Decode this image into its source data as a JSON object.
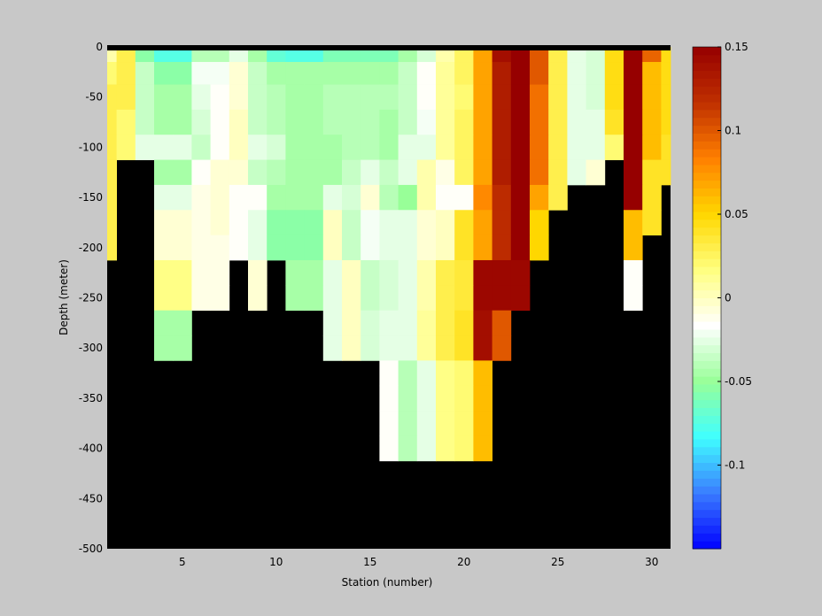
{
  "figure": {
    "background": "#c8c8c8",
    "mask_color": "#000000"
  },
  "chart_data": {
    "type": "heatmap",
    "title": "",
    "xlabel": "Station (number)",
    "ylabel": "Depth (meter)",
    "xlim": [
      1,
      31
    ],
    "ylim": [
      -500,
      0
    ],
    "x_ticks": [
      5,
      10,
      15,
      20,
      25,
      30
    ],
    "y_ticks": [
      0,
      -50,
      -100,
      -150,
      -200,
      -250,
      -300,
      -350,
      -400,
      -450,
      -500
    ],
    "depth_levels": [
      -5,
      -25,
      -50,
      -75,
      -100,
      -125,
      -150,
      -175,
      -200,
      -225,
      -250,
      -275,
      -300,
      -325,
      -350,
      -375,
      -400
    ],
    "stations": [
      1,
      2,
      3,
      4,
      5,
      6,
      7,
      8,
      9,
      10,
      11,
      12,
      13,
      14,
      15,
      16,
      17,
      18,
      19,
      20,
      21,
      22,
      23,
      24,
      25,
      26,
      27,
      28,
      29,
      30,
      31
    ],
    "values": [
      [
        0.005,
        0.03,
        -0.055,
        -0.075,
        -0.075,
        -0.04,
        -0.04,
        -0.025,
        -0.045,
        -0.07,
        -0.075,
        -0.075,
        -0.06,
        -0.06,
        -0.06,
        -0.06,
        -0.045,
        -0.03,
        0.005,
        0.025,
        0.07,
        0.14,
        0.15,
        0.1,
        0.03,
        -0.025,
        -0.03,
        0.045,
        0.15,
        0.095,
        0.045
      ],
      [
        0.02,
        0.03,
        -0.035,
        -0.055,
        -0.055,
        -0.02,
        -0.02,
        -0.005,
        -0.035,
        -0.045,
        -0.045,
        -0.045,
        -0.045,
        -0.045,
        -0.045,
        -0.045,
        -0.035,
        -0.015,
        0.01,
        0.025,
        0.07,
        0.13,
        0.15,
        0.1,
        0.03,
        -0.025,
        -0.03,
        0.045,
        0.15,
        0.06,
        0.045
      ],
      [
        0.03,
        0.03,
        -0.035,
        -0.045,
        -0.045,
        -0.025,
        -0.015,
        -0.005,
        -0.035,
        -0.04,
        -0.045,
        -0.045,
        -0.04,
        -0.04,
        -0.04,
        -0.04,
        -0.035,
        -0.015,
        0.01,
        0.02,
        0.07,
        0.13,
        0.15,
        0.09,
        0.03,
        -0.025,
        -0.03,
        0.045,
        0.15,
        0.06,
        0.045
      ],
      [
        0.03,
        0.02,
        -0.035,
        -0.045,
        -0.045,
        -0.03,
        -0.015,
        0.0,
        -0.035,
        -0.04,
        -0.045,
        -0.045,
        -0.04,
        -0.04,
        -0.04,
        -0.045,
        -0.035,
        -0.02,
        0.01,
        0.025,
        0.07,
        0.13,
        0.15,
        0.09,
        0.03,
        -0.025,
        -0.025,
        0.04,
        0.15,
        0.06,
        0.045
      ],
      [
        0.03,
        0.02,
        -0.025,
        -0.025,
        -0.025,
        -0.035,
        -0.015,
        0.0,
        -0.025,
        -0.03,
        -0.045,
        -0.045,
        -0.045,
        -0.04,
        -0.04,
        -0.045,
        -0.025,
        -0.025,
        0.01,
        0.025,
        0.07,
        0.13,
        0.15,
        0.09,
        0.03,
        -0.025,
        -0.025,
        0.02,
        0.15,
        0.06,
        0.04
      ],
      [
        0.03,
        null,
        null,
        -0.045,
        -0.045,
        -0.015,
        -0.005,
        -0.005,
        -0.035,
        -0.04,
        -0.045,
        -0.045,
        -0.045,
        -0.035,
        -0.025,
        -0.035,
        -0.025,
        0.005,
        -0.01,
        0.025,
        0.07,
        0.13,
        0.15,
        0.09,
        0.03,
        -0.025,
        -0.005,
        null,
        0.15,
        0.04,
        0.04
      ],
      [
        0.03,
        null,
        null,
        -0.025,
        -0.025,
        -0.01,
        -0.005,
        -0.015,
        -0.015,
        -0.045,
        -0.045,
        -0.045,
        -0.025,
        -0.03,
        -0.005,
        -0.04,
        -0.05,
        0.005,
        -0.015,
        -0.015,
        0.08,
        0.12,
        0.15,
        0.07,
        0.03,
        null,
        null,
        null,
        0.15,
        0.04,
        null
      ],
      [
        0.03,
        null,
        null,
        -0.005,
        -0.005,
        -0.01,
        -0.005,
        -0.015,
        -0.025,
        -0.055,
        -0.055,
        -0.055,
        0.0,
        -0.035,
        -0.02,
        -0.025,
        -0.025,
        -0.005,
        0.0,
        0.04,
        0.07,
        0.12,
        0.15,
        0.05,
        null,
        null,
        null,
        null,
        0.06,
        0.04,
        null
      ],
      [
        0.03,
        null,
        null,
        -0.005,
        -0.005,
        -0.01,
        -0.01,
        -0.015,
        -0.025,
        -0.055,
        -0.055,
        -0.055,
        0.0,
        -0.035,
        -0.02,
        -0.025,
        -0.025,
        -0.005,
        0.0,
        0.04,
        0.07,
        0.12,
        0.15,
        0.05,
        null,
        null,
        null,
        null,
        0.06,
        null,
        null
      ],
      [
        null,
        null,
        null,
        0.015,
        0.015,
        -0.01,
        -0.01,
        null,
        -0.005,
        null,
        -0.045,
        -0.045,
        -0.025,
        0.0,
        -0.035,
        -0.03,
        -0.025,
        0.005,
        0.03,
        0.035,
        0.145,
        0.145,
        0.145,
        null,
        null,
        null,
        null,
        null,
        -0.015,
        null,
        null
      ],
      [
        null,
        null,
        null,
        0.015,
        0.015,
        -0.01,
        -0.01,
        null,
        -0.005,
        null,
        -0.045,
        -0.045,
        -0.025,
        0.0,
        -0.035,
        -0.03,
        -0.025,
        0.005,
        0.03,
        0.035,
        0.145,
        0.145,
        0.145,
        null,
        null,
        null,
        null,
        null,
        -0.015,
        null,
        null
      ],
      [
        null,
        null,
        null,
        -0.045,
        -0.045,
        null,
        null,
        null,
        null,
        null,
        null,
        null,
        -0.025,
        0.0,
        -0.03,
        -0.025,
        -0.025,
        0.01,
        0.03,
        0.04,
        0.14,
        0.1,
        null,
        null,
        null,
        null,
        null,
        null,
        null,
        null,
        null
      ],
      [
        null,
        null,
        null,
        -0.045,
        -0.045,
        null,
        null,
        null,
        null,
        null,
        null,
        null,
        -0.025,
        0.0,
        -0.03,
        -0.025,
        -0.025,
        0.01,
        0.03,
        0.04,
        0.14,
        0.1,
        null,
        null,
        null,
        null,
        null,
        null,
        null,
        null,
        null
      ],
      [
        null,
        null,
        null,
        null,
        null,
        null,
        null,
        null,
        null,
        null,
        null,
        null,
        null,
        null,
        null,
        -0.015,
        -0.04,
        -0.025,
        0.015,
        0.02,
        0.06,
        null,
        null,
        null,
        null,
        null,
        null,
        null,
        null,
        null,
        null
      ],
      [
        null,
        null,
        null,
        null,
        null,
        null,
        null,
        null,
        null,
        null,
        null,
        null,
        null,
        null,
        null,
        -0.015,
        -0.04,
        -0.025,
        0.015,
        0.02,
        0.06,
        null,
        null,
        null,
        null,
        null,
        null,
        null,
        null,
        null,
        null
      ],
      [
        null,
        null,
        null,
        null,
        null,
        null,
        null,
        null,
        null,
        null,
        null,
        null,
        null,
        null,
        null,
        -0.015,
        -0.04,
        -0.025,
        0.015,
        0.02,
        0.06,
        null,
        null,
        null,
        null,
        null,
        null,
        null,
        null,
        null,
        null
      ],
      [
        null,
        null,
        null,
        null,
        null,
        null,
        null,
        null,
        null,
        null,
        null,
        null,
        null,
        null,
        null,
        -0.015,
        -0.04,
        -0.025,
        0.015,
        0.02,
        0.06,
        null,
        null,
        null,
        null,
        null,
        null,
        null,
        null,
        null,
        null
      ]
    ],
    "colorbar": {
      "clim": [
        -0.15,
        0.15
      ],
      "ticks": [
        0.15,
        0.1,
        0.05,
        0,
        -0.05,
        -0.1
      ],
      "tick_labels": [
        "0.15",
        "0.1",
        "0.05",
        "0",
        "-0.05",
        "-0.1"
      ],
      "colormap": [
        "#0000ff",
        "#3a7cff",
        "#40ffff",
        "#98ff98",
        "#ffffff",
        "#ffff80",
        "#ffd700",
        "#ff8000",
        "#c03000",
        "#960000"
      ]
    }
  }
}
